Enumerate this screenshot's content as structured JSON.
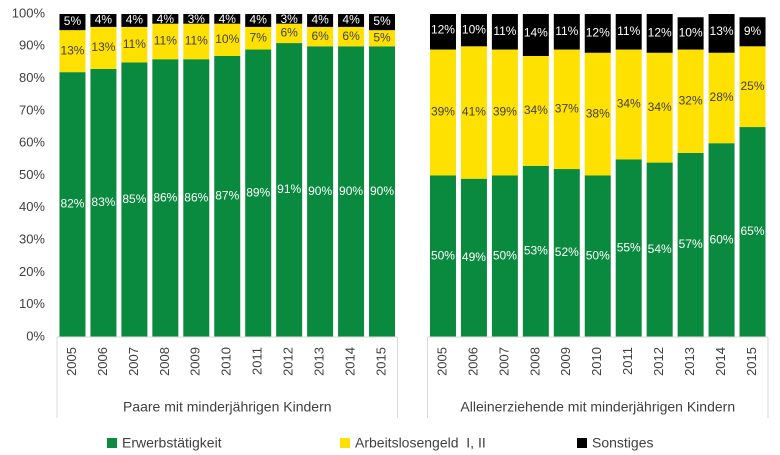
{
  "chart_data": {
    "type": "stacked-bar",
    "groups": [
      {
        "name": "Paare mit minderjährigen Kindern",
        "categories": [
          "2005",
          "2006",
          "2007",
          "2008",
          "2009",
          "2010",
          "2011",
          "2012",
          "2013",
          "2014",
          "2015"
        ]
      },
      {
        "name": "Alleinerziehende mit minderjährigen Kindern",
        "categories": [
          "2005",
          "2006",
          "2007",
          "2008",
          "2009",
          "2010",
          "2011",
          "2012",
          "2013",
          "2014",
          "2015"
        ]
      }
    ],
    "series": [
      {
        "name": "Erwerbstätigkeit",
        "color": "#0a8a3f",
        "label_color": "#ffffff",
        "values": [
          82,
          83,
          85,
          86,
          86,
          87,
          89,
          91,
          90,
          90,
          90,
          50,
          49,
          50,
          53,
          52,
          50,
          55,
          54,
          57,
          60,
          65
        ],
        "value_labels": [
          "82%",
          "83%",
          "85%",
          "86%",
          "86%",
          "87%",
          "89%",
          "91%",
          "90%",
          "90%",
          "90%",
          "50%",
          "49%",
          "50%",
          "53%",
          "52%",
          "50%",
          "55%",
          "54%",
          "57%",
          "60%",
          "65%"
        ]
      },
      {
        "name": "Arbeitslosengeld  I, II",
        "color": "#ffe100",
        "label_color": "#404040",
        "values": [
          13,
          13,
          11,
          11,
          11,
          10,
          7,
          6,
          6,
          6,
          5,
          39,
          41,
          39,
          34,
          37,
          38,
          34,
          34,
          32,
          28,
          25
        ],
        "value_labels": [
          "13%",
          "13%",
          "11%",
          "11%",
          "11%",
          "10%",
          "7%",
          "6%",
          "6%",
          "6%",
          "5%",
          "39%",
          "41%",
          "39%",
          "34%",
          "37%",
          "38%",
          "34%",
          "34%",
          "32%",
          "28%",
          "25%"
        ]
      },
      {
        "name": "Sonstiges",
        "color": "#000000",
        "label_color": "#ffffff",
        "values": [
          5,
          4,
          4,
          4,
          3,
          4,
          4,
          3,
          4,
          4,
          5,
          12,
          10,
          11,
          14,
          11,
          12,
          11,
          12,
          10,
          13,
          9
        ],
        "value_labels": [
          "5%",
          "4%",
          "4%",
          "4%",
          "3%",
          "4%",
          "4%",
          "3%",
          "4%",
          "4%",
          "5%",
          "12%",
          "10%",
          "11%",
          "14%",
          "11%",
          "12%",
          "11%",
          "12%",
          "10%",
          "13%",
          "9%"
        ]
      }
    ],
    "ylim": [
      0,
      100
    ],
    "yticks": [
      {
        "value": 0,
        "label": "0%"
      },
      {
        "value": 10,
        "label": "10%"
      },
      {
        "value": 20,
        "label": "20%"
      },
      {
        "value": 30,
        "label": "30%"
      },
      {
        "value": 40,
        "label": "40%"
      },
      {
        "value": 50,
        "label": "50%"
      },
      {
        "value": 60,
        "label": "60%"
      },
      {
        "value": 70,
        "label": "70%"
      },
      {
        "value": 80,
        "label": "80%"
      },
      {
        "value": 90,
        "label": "90%"
      },
      {
        "value": 100,
        "label": "100%"
      }
    ],
    "grid": false,
    "legend": "bottom"
  }
}
